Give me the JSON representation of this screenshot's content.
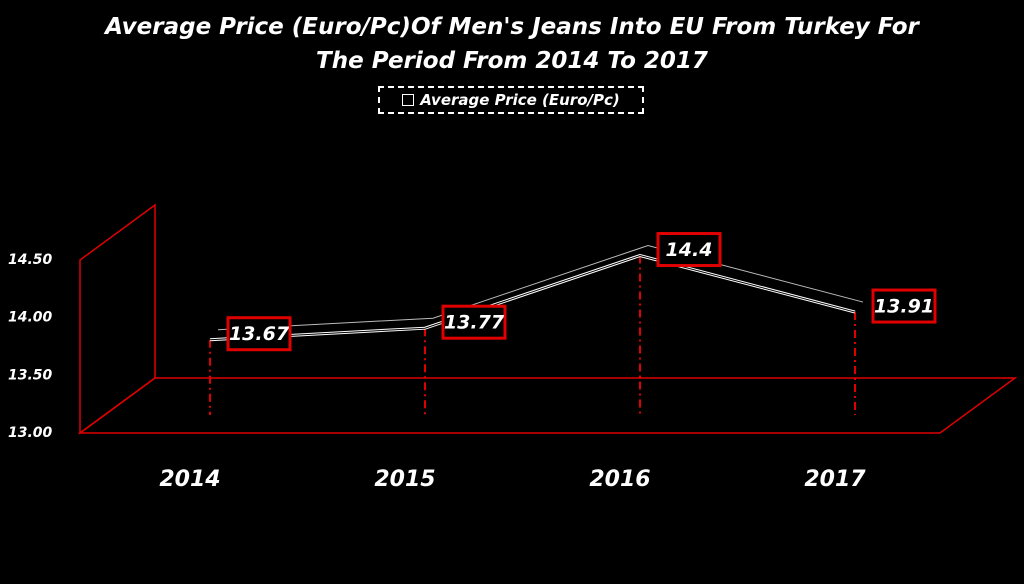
{
  "chart_data": {
    "type": "line",
    "title": "Average Price (Euro/Pc)Of Men's Jeans Into EU From Turkey For The Period From 2014 To 2017",
    "categories": [
      "2014",
      "2015",
      "2016",
      "2017"
    ],
    "series": [
      {
        "name": "Average Price (Euro/Pc)",
        "color": "#ffffff",
        "values": [
          13.67,
          13.77,
          14.4,
          13.91
        ]
      }
    ],
    "ylim": [
      13,
      14.5
    ],
    "yticks": [
      {
        "value": 13,
        "label": "13.00"
      },
      {
        "value": 13.5,
        "label": "13.50"
      },
      {
        "value": 14,
        "label": "14.00"
      },
      {
        "value": 14.5,
        "label": "14.50"
      }
    ]
  }
}
